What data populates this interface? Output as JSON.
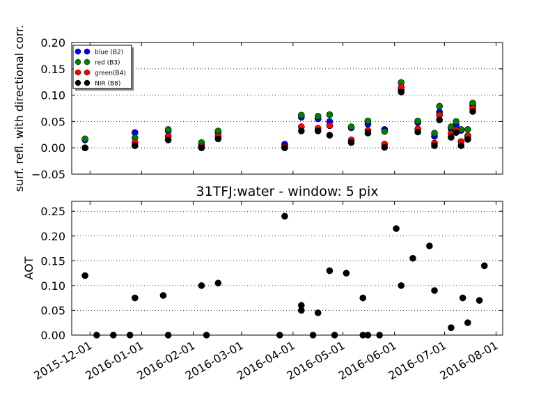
{
  "chart_data": [
    {
      "type": "scatter",
      "title": "",
      "xlabel": "",
      "ylabel": "surf. refl. with directional corr.",
      "x_axis": "date",
      "xlim": [
        "2015-11-20",
        "2016-08-05"
      ],
      "ylim": [
        -0.05,
        0.2
      ],
      "yticks": [
        "−0.05",
        "0.00",
        "0.05",
        "0.10",
        "0.15",
        "0.20"
      ],
      "grid": "horizontal dotted",
      "legend": "top-left",
      "series": [
        {
          "name": "blue (B2)",
          "color": "#0000ff",
          "x": [
            "2015-11-28",
            "2015-12-28",
            "2016-01-17",
            "2016-02-06",
            "2016-02-16",
            "2016-03-27",
            "2016-04-06",
            "2016-04-16",
            "2016-04-23",
            "2016-05-06",
            "2016-05-16",
            "2016-05-26",
            "2016-06-05",
            "2016-06-15",
            "2016-06-25",
            "2016-06-28",
            "2016-07-05",
            "2016-07-08",
            "2016-07-11",
            "2016-07-15",
            "2016-07-18"
          ],
          "y": [
            0.015,
            0.029,
            0.032,
            0.005,
            0.029,
            0.007,
            0.058,
            0.055,
            0.05,
            0.038,
            0.045,
            0.035,
            0.11,
            0.048,
            0.022,
            0.068,
            0.036,
            0.043,
            0.033,
            0.02,
            0.08
          ]
        },
        {
          "name": "red  (B3)",
          "color": "#008000",
          "x": [
            "2015-11-28",
            "2015-12-28",
            "2016-01-17",
            "2016-02-06",
            "2016-02-16",
            "2016-03-27",
            "2016-04-06",
            "2016-04-16",
            "2016-04-23",
            "2016-05-06",
            "2016-05-16",
            "2016-05-26",
            "2016-06-05",
            "2016-06-15",
            "2016-06-25",
            "2016-06-28",
            "2016-07-05",
            "2016-07-08",
            "2016-07-11",
            "2016-07-15",
            "2016-07-18"
          ],
          "y": [
            0.017,
            0.019,
            0.035,
            0.01,
            0.032,
            0.003,
            0.062,
            0.06,
            0.063,
            0.04,
            0.051,
            0.031,
            0.124,
            0.051,
            0.028,
            0.079,
            0.04,
            0.05,
            0.035,
            0.035,
            0.085
          ]
        },
        {
          "name": "green(B4)",
          "color": "#ff0000",
          "x": [
            "2015-11-28",
            "2015-12-28",
            "2016-01-17",
            "2016-02-06",
            "2016-02-16",
            "2016-03-27",
            "2016-04-06",
            "2016-04-16",
            "2016-04-23",
            "2016-05-06",
            "2016-05-16",
            "2016-05-26",
            "2016-06-05",
            "2016-06-15",
            "2016-06-25",
            "2016-06-28",
            "2016-07-05",
            "2016-07-08",
            "2016-07-11",
            "2016-07-15",
            "2016-07-18"
          ],
          "y": [
            0.0,
            0.01,
            0.022,
            0.002,
            0.022,
            0.002,
            0.04,
            0.037,
            0.042,
            0.015,
            0.033,
            0.007,
            0.115,
            0.036,
            0.009,
            0.062,
            0.027,
            0.034,
            0.012,
            0.023,
            0.075
          ]
        },
        {
          "name": "NIR  (B8)",
          "color": "#000000",
          "x": [
            "2015-11-28",
            "2015-12-28",
            "2016-01-17",
            "2016-02-06",
            "2016-02-16",
            "2016-03-27",
            "2016-04-06",
            "2016-04-16",
            "2016-04-23",
            "2016-05-06",
            "2016-05-16",
            "2016-05-26",
            "2016-06-05",
            "2016-06-15",
            "2016-06-25",
            "2016-06-28",
            "2016-07-05",
            "2016-07-08",
            "2016-07-11",
            "2016-07-15",
            "2016-07-18"
          ],
          "y": [
            0.0,
            0.004,
            0.015,
            0.0,
            0.017,
            0.0,
            0.032,
            0.032,
            0.024,
            0.01,
            0.028,
            0.001,
            0.106,
            0.03,
            0.004,
            0.053,
            0.02,
            0.029,
            0.004,
            0.016,
            0.069
          ]
        }
      ]
    },
    {
      "type": "scatter",
      "title": "31TFJ:water - window: 5 pix",
      "xlabel": "",
      "ylabel": "AOT",
      "x_axis": "date",
      "xlim": [
        "2015-11-20",
        "2016-08-05"
      ],
      "ylim": [
        0,
        0.27
      ],
      "yticks": [
        "0.00",
        "0.05",
        "0.10",
        "0.15",
        "0.20",
        "0.25"
      ],
      "xticks": [
        "2015-12-01",
        "2016-01-01",
        "2016-02-01",
        "2016-03-01",
        "2016-04-01",
        "2016-05-01",
        "2016-06-01",
        "2016-07-01",
        "2016-08-01"
      ],
      "grid": "horizontal dotted",
      "series": [
        {
          "color": "#000000",
          "x": [
            "2015-11-28",
            "2015-12-05",
            "2015-12-15",
            "2015-12-25",
            "2015-12-28",
            "2016-01-14",
            "2016-01-17",
            "2016-02-06",
            "2016-02-09",
            "2016-02-16",
            "2016-03-24",
            "2016-03-27",
            "2016-04-06",
            "2016-04-06",
            "2016-04-13",
            "2016-04-16",
            "2016-04-23",
            "2016-04-26",
            "2016-05-03",
            "2016-05-13",
            "2016-05-13",
            "2016-05-16",
            "2016-05-23",
            "2016-06-02",
            "2016-06-05",
            "2016-06-12",
            "2016-06-22",
            "2016-06-25",
            "2016-07-05",
            "2016-07-12",
            "2016-07-15",
            "2016-07-22",
            "2016-07-25"
          ],
          "y": [
            0.12,
            0.0,
            0.0,
            0.0,
            0.075,
            0.08,
            0.0,
            0.1,
            0.0,
            0.105,
            0.0,
            0.24,
            0.06,
            0.05,
            0.0,
            0.045,
            0.13,
            0.0,
            0.125,
            0.075,
            0.0,
            0.0,
            0.0,
            0.215,
            0.1,
            0.155,
            0.18,
            0.09,
            0.015,
            0.075,
            0.025,
            0.07,
            0.14
          ]
        }
      ]
    }
  ]
}
